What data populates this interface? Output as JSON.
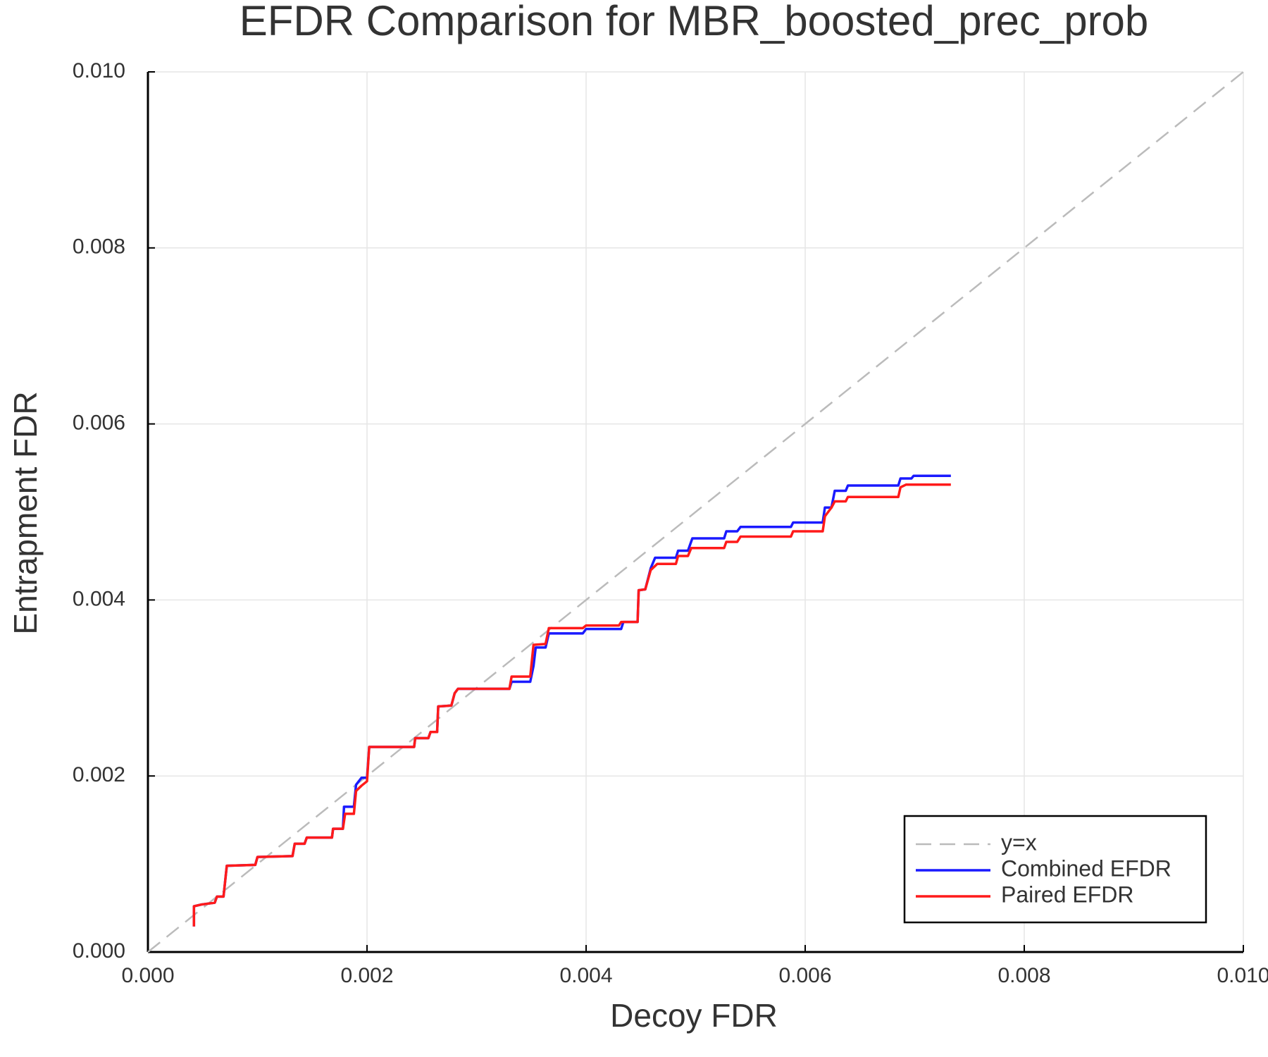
{
  "chart_data": {
    "type": "line",
    "title": "EFDR Comparison for MBR_boosted_prec_prob",
    "xlabel": "Decoy FDR",
    "ylabel": "Entrapment FDR",
    "xlim": [
      0,
      0.01
    ],
    "ylim": [
      0,
      0.01
    ],
    "xticks": [
      {
        "value": 0,
        "label": "0.000"
      },
      {
        "value": 0.002,
        "label": "0.002"
      },
      {
        "value": 0.004,
        "label": "0.004"
      },
      {
        "value": 0.006,
        "label": "0.006"
      },
      {
        "value": 0.008,
        "label": "0.008"
      },
      {
        "value": 0.01,
        "label": "0.010"
      }
    ],
    "yticks": [
      {
        "value": 0,
        "label": "0.000"
      },
      {
        "value": 0.002,
        "label": "0.002"
      },
      {
        "value": 0.004,
        "label": "0.004"
      },
      {
        "value": 0.006,
        "label": "0.006"
      },
      {
        "value": 0.008,
        "label": "0.008"
      },
      {
        "value": 0.01,
        "label": "0.010"
      }
    ],
    "grid": true,
    "legend": "lower right",
    "series": [
      {
        "name": "y=x",
        "color": "#bbbbbb",
        "dash": true,
        "x": [
          0,
          0.01
        ],
        "values": [
          0,
          0.01
        ]
      },
      {
        "name": "Combined EFDR",
        "color": "#1a1aff",
        "dash": false,
        "x": [
          0.00042,
          0.00042,
          0.00049,
          0.00061,
          0.00063,
          0.00069,
          0.00072,
          0.00098,
          0.001,
          0.00132,
          0.00134,
          0.00143,
          0.00145,
          0.00168,
          0.00169,
          0.00178,
          0.00179,
          0.00188,
          0.0019,
          0.00195,
          0.002,
          0.00202,
          0.00243,
          0.00244,
          0.00256,
          0.00258,
          0.00264,
          0.00265,
          0.00277,
          0.0028,
          0.00283,
          0.0033,
          0.00332,
          0.00349,
          0.00352,
          0.00354,
          0.00363,
          0.00366,
          0.00397,
          0.004,
          0.00432,
          0.00434,
          0.00447,
          0.00448,
          0.00454,
          0.00459,
          0.00463,
          0.00482,
          0.00484,
          0.00493,
          0.00497,
          0.00526,
          0.00528,
          0.00538,
          0.00541,
          0.00587,
          0.00589,
          0.00616,
          0.00618,
          0.00624,
          0.00627,
          0.00637,
          0.00639,
          0.00685,
          0.00687,
          0.00697,
          0.00699,
          0.00733
        ],
        "values": [
          0.00029,
          0.00052,
          0.00054,
          0.00056,
          0.00063,
          0.00063,
          0.00098,
          0.00099,
          0.00108,
          0.00109,
          0.00123,
          0.00123,
          0.0013,
          0.0013,
          0.0014,
          0.0014,
          0.00165,
          0.00165,
          0.0019,
          0.00198,
          0.00198,
          0.00233,
          0.00233,
          0.00243,
          0.00243,
          0.0025,
          0.0025,
          0.00279,
          0.0028,
          0.00294,
          0.00299,
          0.00299,
          0.00307,
          0.00307,
          0.00325,
          0.00346,
          0.00346,
          0.00362,
          0.00362,
          0.00367,
          0.00367,
          0.00375,
          0.00375,
          0.00411,
          0.00412,
          0.00436,
          0.00448,
          0.00448,
          0.00456,
          0.00456,
          0.0047,
          0.0047,
          0.00478,
          0.00478,
          0.00483,
          0.00483,
          0.00488,
          0.00488,
          0.00505,
          0.00505,
          0.00524,
          0.00524,
          0.0053,
          0.0053,
          0.00538,
          0.00538,
          0.00541,
          0.00541
        ]
      },
      {
        "name": "Paired EFDR",
        "color": "#ff1a1a",
        "dash": false,
        "x": [
          0.00042,
          0.00042,
          0.00049,
          0.00061,
          0.00063,
          0.00069,
          0.00072,
          0.00098,
          0.001,
          0.00132,
          0.00134,
          0.00143,
          0.00145,
          0.00168,
          0.00169,
          0.00178,
          0.0018,
          0.00188,
          0.0019,
          0.00195,
          0.002,
          0.00202,
          0.00243,
          0.00244,
          0.00256,
          0.00258,
          0.00264,
          0.00265,
          0.00277,
          0.0028,
          0.00283,
          0.0033,
          0.00332,
          0.00349,
          0.00352,
          0.00363,
          0.00366,
          0.00397,
          0.004,
          0.0043,
          0.00432,
          0.00447,
          0.00448,
          0.00454,
          0.00459,
          0.00465,
          0.00482,
          0.00484,
          0.00493,
          0.00496,
          0.00526,
          0.00528,
          0.00538,
          0.00541,
          0.00587,
          0.00589,
          0.00616,
          0.00618,
          0.00624,
          0.00627,
          0.00637,
          0.00639,
          0.00685,
          0.00687,
          0.00692,
          0.00733
        ],
        "values": [
          0.00029,
          0.00052,
          0.00054,
          0.00056,
          0.00063,
          0.00063,
          0.00098,
          0.00099,
          0.00108,
          0.00109,
          0.00123,
          0.00123,
          0.0013,
          0.0013,
          0.0014,
          0.0014,
          0.00157,
          0.00157,
          0.00183,
          0.00189,
          0.00194,
          0.00233,
          0.00233,
          0.00243,
          0.00243,
          0.0025,
          0.0025,
          0.00279,
          0.0028,
          0.00294,
          0.00299,
          0.00299,
          0.00313,
          0.00313,
          0.00349,
          0.0035,
          0.00368,
          0.00368,
          0.00371,
          0.00371,
          0.00375,
          0.00375,
          0.00411,
          0.00412,
          0.00434,
          0.00441,
          0.00441,
          0.0045,
          0.0045,
          0.00459,
          0.00459,
          0.00466,
          0.00466,
          0.00472,
          0.00472,
          0.00478,
          0.00478,
          0.00495,
          0.00505,
          0.00512,
          0.00512,
          0.00517,
          0.00517,
          0.00528,
          0.00531,
          0.00531
        ]
      }
    ]
  }
}
